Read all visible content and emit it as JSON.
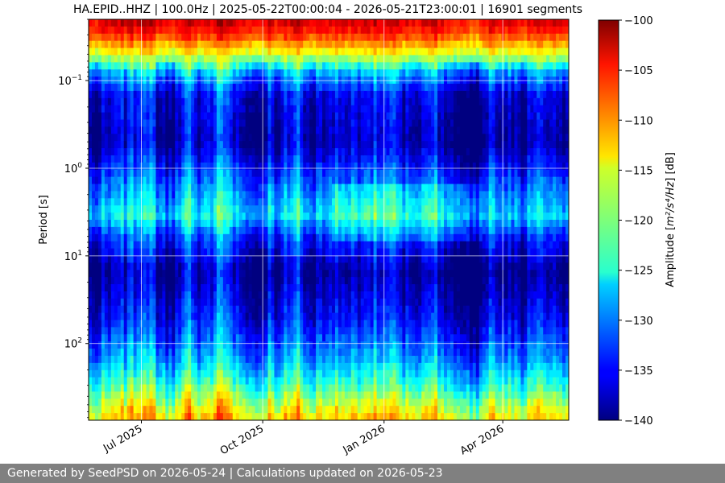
{
  "chart_data": {
    "type": "heatmap",
    "title": "HA.EPID..HHZ | 100.0Hz | 2025-05-22T00:00:04 - 2026-05-21T23:00:01 | 16901 segments",
    "ylabel": "Period [s]",
    "x_range": [
      "2025-05-22",
      "2026-05-21"
    ],
    "x_ticks": [
      {
        "date": "2025-07-01",
        "label": "Jul 2025"
      },
      {
        "date": "2025-10-01",
        "label": "Oct 2025"
      },
      {
        "date": "2026-01-01",
        "label": "Jan 2026"
      },
      {
        "date": "2026-04-01",
        "label": "Apr 2026"
      }
    ],
    "y_scale": "log",
    "y_range": [
      0.02,
      750
    ],
    "y_ticks": [
      {
        "value": 0.1,
        "base": "10",
        "exp": "−1"
      },
      {
        "value": 1,
        "base": "10",
        "exp": "0"
      },
      {
        "value": 10,
        "base": "10",
        "exp": "1"
      },
      {
        "value": 100,
        "base": "10",
        "exp": "2"
      }
    ],
    "y_inverted": true,
    "grid": true,
    "colormap": "jet",
    "colorbar": {
      "label_prefix": "Amplitude [",
      "label_math": "m²/s⁴/Hz",
      "label_suffix": "] [dB]",
      "range": [
        -140,
        -100
      ],
      "ticks": [
        -100,
        -105,
        -110,
        -115,
        -120,
        -125,
        -130,
        -135,
        -140
      ],
      "tick_labels": [
        "−100",
        "−105",
        "−110",
        "−115",
        "−120",
        "−125",
        "−130",
        "−135",
        "−140"
      ]
    },
    "amplitude_profile_db": [
      {
        "period": 0.02,
        "db": -103
      },
      {
        "period": 0.03,
        "db": -107
      },
      {
        "period": 0.05,
        "db": -116
      },
      {
        "period": 0.08,
        "db": -128
      },
      {
        "period": 0.15,
        "db": -136
      },
      {
        "period": 0.5,
        "db": -138
      },
      {
        "period": 1.5,
        "db": -131
      },
      {
        "period": 3.5,
        "db": -126
      },
      {
        "period": 6,
        "db": -133
      },
      {
        "period": 15,
        "db": -139
      },
      {
        "period": 50,
        "db": -135
      },
      {
        "period": 150,
        "db": -129
      },
      {
        "period": 300,
        "db": -123
      },
      {
        "period": 500,
        "db": -117
      },
      {
        "period": 750,
        "db": -113
      }
    ]
  },
  "footer": {
    "text": "Generated by SeedPSD on 2026-05-24 | Calculations updated on 2026-05-23"
  }
}
